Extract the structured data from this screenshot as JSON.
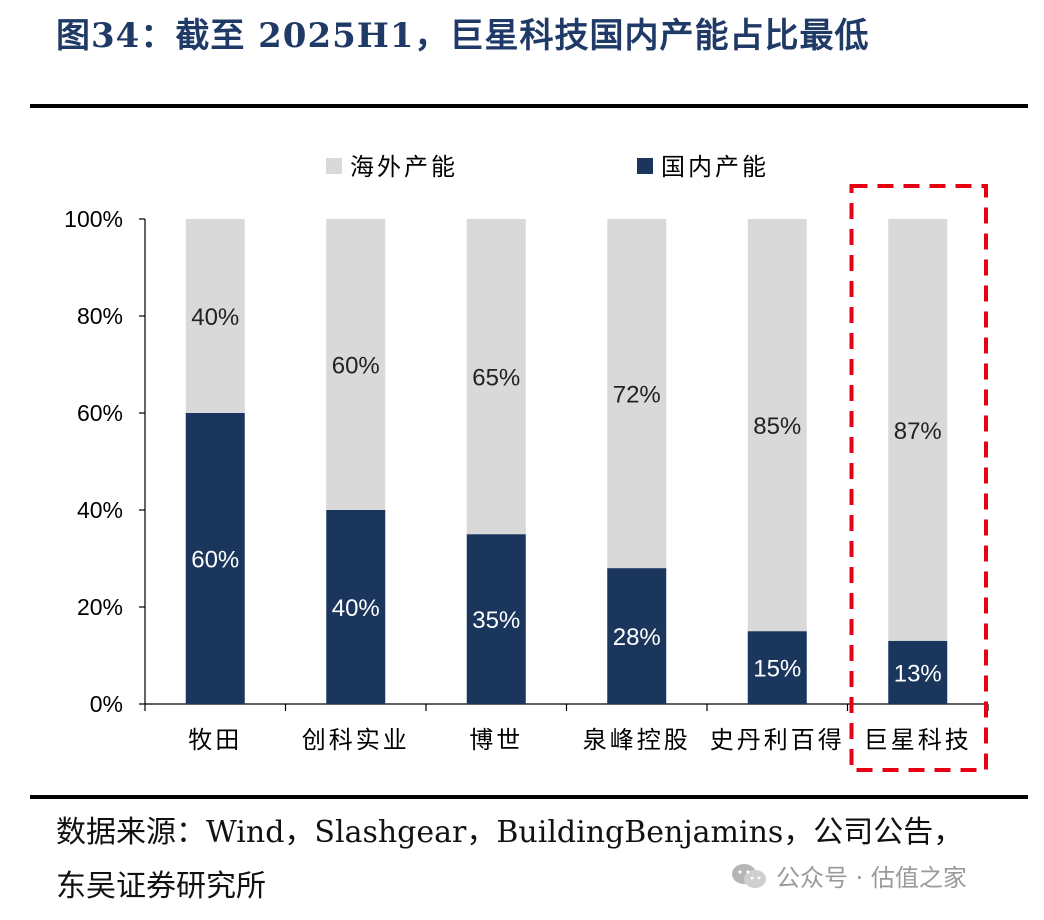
{
  "title": "图34：截至 2025H1，巨星科技国内产能占比最低",
  "source_text": "数据来源：Wind，Slashgear，BuildingBenjamins，公司公告，东吴证券研究所",
  "watermark": "公众号 · 估值之家",
  "colors": {
    "overseas": "#d9d9d9",
    "domestic": "#1a365d",
    "highlight": "#e60012",
    "title": "#1f3a66"
  },
  "chart_data": {
    "type": "bar",
    "stacked": true,
    "categories": [
      "牧田",
      "创科实业",
      "博世",
      "泉峰控股",
      "史丹利百得",
      "巨星科技"
    ],
    "series": [
      {
        "name": "国内产能",
        "values": [
          60,
          40,
          35,
          28,
          15,
          13
        ],
        "labels": [
          "60%",
          "40%",
          "35%",
          "28%",
          "15%",
          "13%"
        ]
      },
      {
        "name": "海外产能",
        "values": [
          40,
          60,
          65,
          72,
          85,
          87
        ],
        "labels": [
          "40%",
          "60%",
          "65%",
          "72%",
          "85%",
          "87%"
        ]
      }
    ],
    "legend": [
      "海外产能",
      "国内产能"
    ],
    "legend_position": "top",
    "ylim": [
      0,
      100
    ],
    "yticks": [
      "0%",
      "20%",
      "40%",
      "60%",
      "80%",
      "100%"
    ],
    "highlight_category": "巨星科技",
    "xlabel": "",
    "ylabel": ""
  }
}
